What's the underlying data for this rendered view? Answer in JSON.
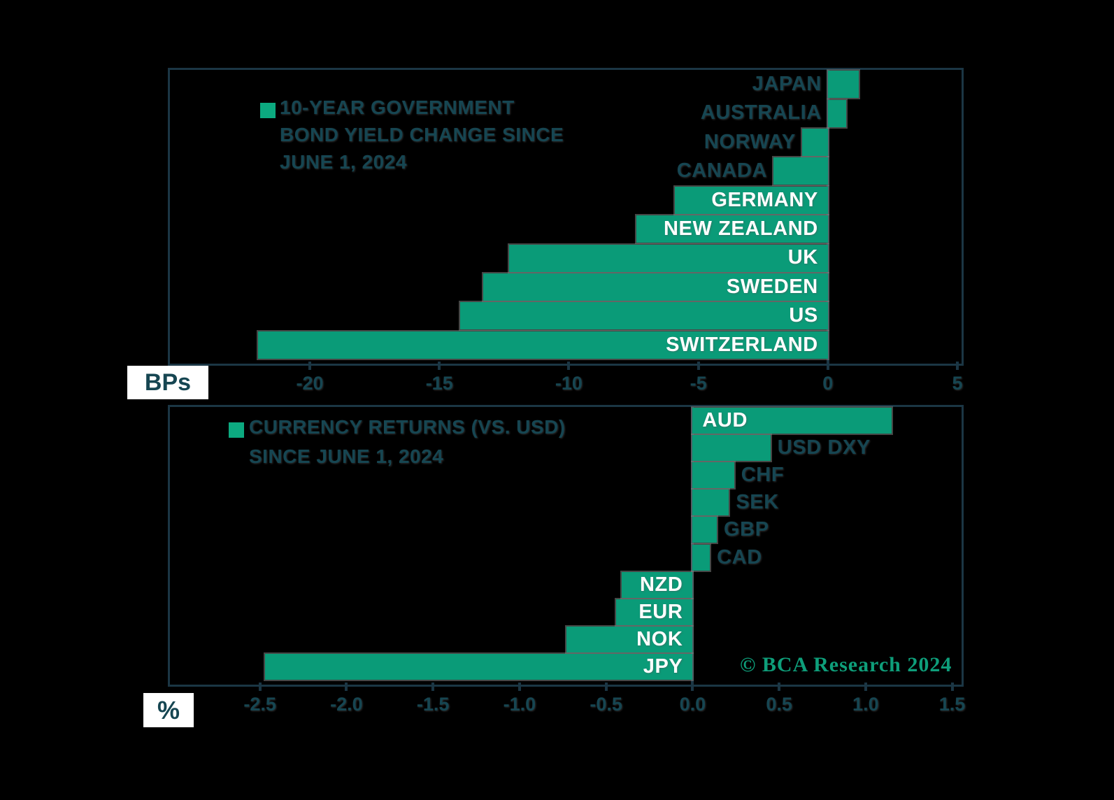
{
  "colors": {
    "background": "#000000",
    "bar_green": "#0a9b78",
    "legend_green": "#0caa80",
    "dark_teal_text": "#164652",
    "chart_border": "#1b3644",
    "copyright_green": "#0e9e7a",
    "bar_label_white": "#ffffff",
    "unit_box_bg": "#ffffff"
  },
  "copyright": "© BCA Research 2024",
  "chart_data": [
    {
      "type": "bar",
      "orientation": "horizontal",
      "title": "10-YEAR GOVERNMENT BOND YIELD CHANGE SINCE JUNE 1, 2024",
      "categories": [
        "JAPAN",
        "AUSTRALIA",
        "NORWAY",
        "CANADA",
        "GERMANY",
        "NEW ZEALAND",
        "UK",
        "SWEDEN",
        "US",
        "SWITZERLAND"
      ],
      "values": [
        1.2,
        0.7,
        -1.0,
        -2.1,
        -5.9,
        -7.4,
        -12.3,
        -13.3,
        -14.2,
        -22.0
      ],
      "xlabel": "BPs",
      "ylabel": "",
      "xlim": [
        -25.4,
        5.0
      ],
      "xticks": [
        -20,
        -15,
        -10,
        -5,
        0,
        5
      ],
      "xtick_labels": [
        "-20",
        "-15",
        "-10",
        "-5",
        "0",
        "5"
      ],
      "grid": false,
      "legend_position": "top-left-inside"
    },
    {
      "type": "bar",
      "orientation": "horizontal",
      "title": "CURRENCY RETURNS (VS. USD) SINCE JUNE 1, 2024",
      "categories": [
        "AUD",
        "USD DXY",
        "CHF",
        "SEK",
        "GBP",
        "CAD",
        "NZD",
        "EUR",
        "NOK",
        "JPY"
      ],
      "values": [
        1.15,
        0.45,
        0.24,
        0.21,
        0.14,
        0.1,
        -0.41,
        -0.44,
        -0.73,
        -2.47
      ],
      "xlabel": "%",
      "ylabel": "",
      "xlim": [
        -3.02,
        1.53
      ],
      "xticks": [
        -2.5,
        -2.0,
        -1.5,
        -1.0,
        -0.5,
        0.0,
        0.5,
        1.0,
        1.5
      ],
      "xtick_labels": [
        "-2.5",
        "-2.0",
        "-1.5",
        "-1.0",
        "-0.5",
        "0.0",
        "0.5",
        "1.0",
        "1.5"
      ],
      "grid": false,
      "legend_position": "top-left-inside"
    }
  ],
  "presentation": {
    "charts": [
      {
        "legend_lines": [
          "10-YEAR GOVERNMENT",
          "BOND YIELD CHANGE SINCE",
          "JUNE 1, 2024"
        ],
        "label_placement": [
          "before",
          "before",
          "before",
          "before",
          "inside",
          "inside",
          "inside",
          "inside",
          "inside",
          "inside"
        ]
      },
      {
        "legend_lines": [
          "CURRENCY RETURNS (VS. USD)",
          "SINCE JUNE 1, 2024"
        ],
        "label_placement": [
          "inside",
          "after",
          "after",
          "after",
          "after",
          "after",
          "inside",
          "inside",
          "inside",
          "inside"
        ]
      }
    ]
  }
}
